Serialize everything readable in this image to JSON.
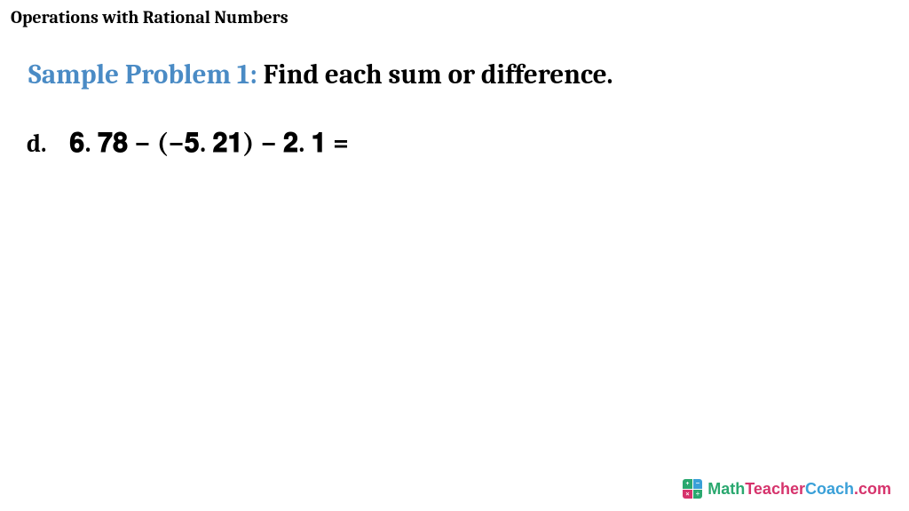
{
  "header": {
    "title": "Operations with Rational Numbers"
  },
  "problem": {
    "label_accent": "Sample Problem 1:",
    "label_rest": " Find each sum or difference.",
    "accent_color": "#4a8bc5",
    "item_letter": "d.",
    "expression": "𝟔. 𝟕𝟖 − (−𝟓. 𝟐𝟏) − 𝟐. 𝟏 ="
  },
  "brand": {
    "text_1": "Math",
    "text_2": "Teacher",
    "text_3": "Coach",
    "text_4": ".com",
    "color_1": "#2aa86f",
    "color_2": "#d6336c",
    "color_3": "#3aa0d8",
    "color_4": "#d6336c",
    "icon_bg_1": "#2aa86f",
    "icon_bg_2": "#3aa0d8",
    "icon_bg_3": "#d6336c",
    "icon_bg_4": "#2aa86f"
  }
}
